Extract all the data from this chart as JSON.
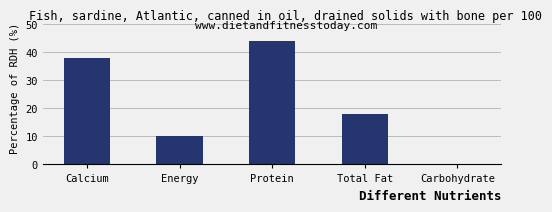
{
  "title": "Fish, sardine, Atlantic, canned in oil, drained solids with bone per 100",
  "subtitle": "www.dietandfitnesstoday.com",
  "xlabel": "Different Nutrients",
  "ylabel": "Percentage of RDH (%)",
  "categories": [
    "Calcium",
    "Energy",
    "Protein",
    "Total Fat",
    "Carbohydrate"
  ],
  "values": [
    38,
    10,
    44,
    18,
    0
  ],
  "bar_color": "#253570",
  "ylim": [
    0,
    55
  ],
  "yticks": [
    0,
    10,
    20,
    30,
    40,
    50
  ],
  "grid_color": "#bbbbbb",
  "bg_color": "#f0f0f0",
  "title_fontsize": 8.5,
  "subtitle_fontsize": 8,
  "xlabel_fontsize": 9,
  "ylabel_fontsize": 7.5,
  "tick_fontsize": 7.5
}
